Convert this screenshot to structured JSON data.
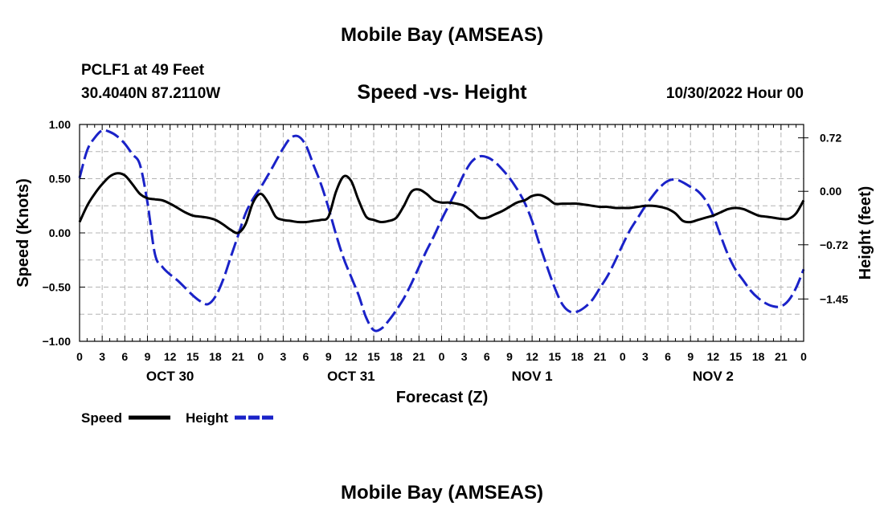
{
  "header": {
    "title": "Mobile Bay (AMSEAS)",
    "station": "PCLF1 at 49 Feet",
    "coords": "30.4040N  87.2110W",
    "subtitle": "Speed -vs- Height",
    "datetime": "10/30/2022 Hour 00"
  },
  "footer": {
    "title": "Mobile Bay (AMSEAS)"
  },
  "chart_data": {
    "type": "line",
    "title": "Speed -vs- Height",
    "xlabel": "Forecast (Z)",
    "ylabel": "Speed (Knots)",
    "y2label": "Height (feet)",
    "xlim": [
      0,
      96
    ],
    "ylim": [
      -1.0,
      1.0
    ],
    "y2lim": [
      -2.02,
      0.9
    ],
    "x_ticks": [
      0,
      3,
      6,
      9,
      12,
      15,
      18,
      21,
      24,
      27,
      30,
      33,
      36,
      39,
      42,
      45,
      48,
      51,
      54,
      57,
      60,
      63,
      66,
      69,
      72,
      75,
      78,
      81,
      84,
      87,
      90,
      93,
      96
    ],
    "x_tick_labels": [
      "0",
      "3",
      "6",
      "9",
      "12",
      "15",
      "18",
      "21",
      "0",
      "3",
      "6",
      "9",
      "12",
      "15",
      "18",
      "21",
      "0",
      "3",
      "6",
      "9",
      "12",
      "15",
      "18",
      "21",
      "0",
      "3",
      "6",
      "9",
      "12",
      "15",
      "18",
      "21",
      "0"
    ],
    "date_labels": [
      {
        "x": 12,
        "label": "OCT 30"
      },
      {
        "x": 36,
        "label": "OCT 31"
      },
      {
        "x": 60,
        "label": "NOV 1"
      },
      {
        "x": 84,
        "label": "NOV 2"
      }
    ],
    "y_ticks": [
      -1.0,
      -0.5,
      0.0,
      0.5,
      1.0
    ],
    "y_tick_labels": [
      "−1.00",
      "−0.50",
      "0.00",
      "0.50",
      "1.00"
    ],
    "y2_ticks": [
      0.72,
      0.0,
      -0.72,
      -1.45
    ],
    "y2_tick_labels": [
      "0.72",
      "0.00",
      "−0.72",
      "−1.45"
    ],
    "grid": true,
    "legend_position": "bottom-left",
    "series": [
      {
        "name": "Speed",
        "axis": "left",
        "color": "#000000",
        "style": "solid",
        "x": [
          0,
          1,
          2,
          3,
          4,
          5,
          6,
          7,
          8,
          9,
          10,
          11,
          12,
          13,
          14,
          15,
          16,
          17,
          18,
          19,
          20,
          21,
          22,
          23,
          24,
          25,
          26,
          27,
          28,
          29,
          30,
          31,
          32,
          33,
          34,
          35,
          36,
          37,
          38,
          39,
          40,
          41,
          42,
          43,
          44,
          45,
          46,
          47,
          48,
          49,
          50,
          51,
          52,
          53,
          54,
          55,
          56,
          57,
          58,
          59,
          60,
          61,
          62,
          63,
          64,
          65,
          66,
          67,
          68,
          69,
          70,
          71,
          72,
          73,
          74,
          75,
          76,
          77,
          78,
          79,
          80,
          81,
          82,
          83,
          84,
          85,
          86,
          87,
          88,
          89,
          90,
          91,
          92,
          93,
          94,
          95,
          96
        ],
        "values": [
          0.1,
          0.25,
          0.36,
          0.45,
          0.52,
          0.55,
          0.53,
          0.45,
          0.36,
          0.32,
          0.31,
          0.3,
          0.27,
          0.23,
          0.19,
          0.16,
          0.15,
          0.14,
          0.12,
          0.08,
          0.03,
          0.0,
          0.08,
          0.28,
          0.36,
          0.28,
          0.15,
          0.12,
          0.11,
          0.1,
          0.1,
          0.11,
          0.12,
          0.15,
          0.38,
          0.52,
          0.48,
          0.3,
          0.15,
          0.12,
          0.1,
          0.11,
          0.14,
          0.25,
          0.38,
          0.4,
          0.36,
          0.3,
          0.28,
          0.28,
          0.27,
          0.25,
          0.2,
          0.14,
          0.14,
          0.17,
          0.2,
          0.24,
          0.28,
          0.3,
          0.34,
          0.35,
          0.32,
          0.27,
          0.27,
          0.27,
          0.27,
          0.26,
          0.25,
          0.24,
          0.24,
          0.23,
          0.23,
          0.23,
          0.24,
          0.25,
          0.25,
          0.24,
          0.22,
          0.18,
          0.11,
          0.1,
          0.12,
          0.14,
          0.16,
          0.19,
          0.22,
          0.23,
          0.22,
          0.19,
          0.16,
          0.15,
          0.14,
          0.13,
          0.13,
          0.18,
          0.3
        ]
      },
      {
        "name": "Height",
        "axis": "right",
        "color": "#1a22c8",
        "style": "dashed",
        "x": [
          0,
          1,
          2,
          3,
          4,
          5,
          6,
          7,
          8,
          9,
          10,
          11,
          12,
          13,
          14,
          15,
          16,
          17,
          18,
          19,
          20,
          21,
          22,
          23,
          24,
          25,
          26,
          27,
          28,
          29,
          30,
          31,
          32,
          33,
          34,
          35,
          36,
          37,
          38,
          39,
          40,
          41,
          42,
          43,
          44,
          45,
          46,
          47,
          48,
          49,
          50,
          51,
          52,
          53,
          54,
          55,
          56,
          57,
          58,
          59,
          60,
          61,
          62,
          63,
          64,
          65,
          66,
          67,
          68,
          69,
          70,
          71,
          72,
          73,
          74,
          75,
          76,
          77,
          78,
          79,
          80,
          81,
          82,
          83,
          84,
          85,
          86,
          87,
          88,
          89,
          90,
          91,
          92,
          93,
          94,
          95,
          96
        ],
        "values": [
          0.18,
          0.55,
          0.72,
          0.82,
          0.8,
          0.74,
          0.64,
          0.5,
          0.36,
          -0.15,
          -0.85,
          -1.02,
          -1.12,
          -1.2,
          -1.3,
          -1.4,
          -1.48,
          -1.52,
          -1.42,
          -1.2,
          -0.9,
          -0.6,
          -0.3,
          -0.1,
          0.05,
          0.22,
          0.4,
          0.58,
          0.72,
          0.74,
          0.62,
          0.36,
          0.1,
          -0.22,
          -0.58,
          -0.9,
          -1.15,
          -1.4,
          -1.7,
          -1.87,
          -1.85,
          -1.74,
          -1.6,
          -1.44,
          -1.24,
          -1.02,
          -0.8,
          -0.6,
          -0.38,
          -0.18,
          0.02,
          0.24,
          0.4,
          0.47,
          0.46,
          0.4,
          0.3,
          0.18,
          0.03,
          -0.15,
          -0.4,
          -0.72,
          -1.02,
          -1.3,
          -1.52,
          -1.62,
          -1.62,
          -1.56,
          -1.46,
          -1.3,
          -1.14,
          -0.94,
          -0.72,
          -0.52,
          -0.36,
          -0.2,
          -0.06,
          0.06,
          0.14,
          0.16,
          0.12,
          0.06,
          0.0,
          -0.12,
          -0.32,
          -0.6,
          -0.86,
          -1.06,
          -1.2,
          -1.34,
          -1.44,
          -1.51,
          -1.55,
          -1.55,
          -1.47,
          -1.3,
          -1.05
        ]
      }
    ]
  }
}
